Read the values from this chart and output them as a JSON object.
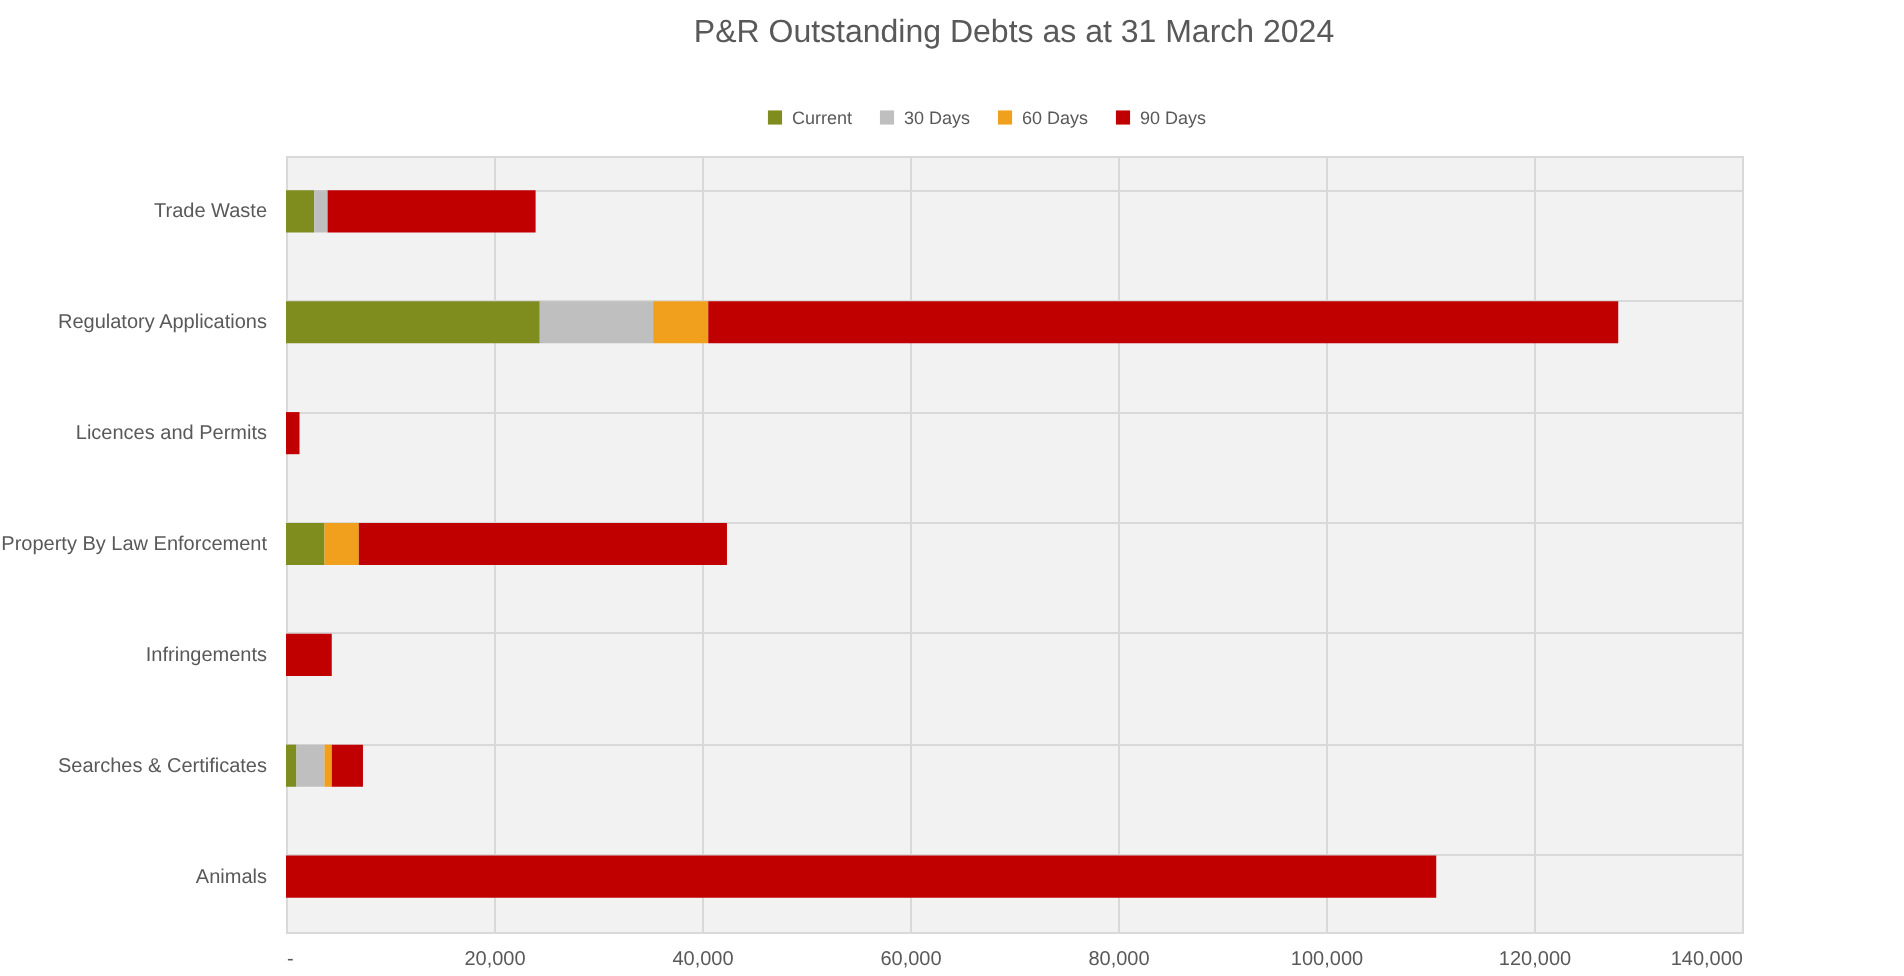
{
  "chart_data": {
    "type": "bar",
    "orientation": "horizontal",
    "stacked": true,
    "title": "P&R Outstanding Debts as at 31 March 2024",
    "categories": [
      "Trade Waste",
      "Regulatory Applications",
      "Licences and Permits",
      "Property By Law Enforcement",
      "Infringements",
      "Searches & Certificates",
      "Animals"
    ],
    "series": [
      {
        "name": "Current",
        "color": "#7f8c1e",
        "values": [
          2700,
          24400,
          null,
          3700,
          null,
          1000,
          null
        ]
      },
      {
        "name": "30 Days",
        "color": "#bfbfbf",
        "values": [
          1300,
          10900,
          null,
          null,
          null,
          2700,
          null
        ]
      },
      {
        "name": "60 Days",
        "color": "#f0a01c",
        "values": [
          null,
          5300,
          null,
          3300,
          null,
          700,
          null
        ]
      },
      {
        "name": "90 Days",
        "color": "#c00000",
        "values": [
          20000,
          87500,
          1300,
          35400,
          4400,
          3000,
          110600
        ]
      }
    ],
    "xlim": [
      0,
      140000
    ],
    "xticks": [
      {
        "value": 0,
        "label": "-"
      },
      {
        "value": 20000,
        "label": "20,000"
      },
      {
        "value": 40000,
        "label": "40,000"
      },
      {
        "value": 60000,
        "label": "60,000"
      },
      {
        "value": 80000,
        "label": "80,000"
      },
      {
        "value": 100000,
        "label": "100,000"
      },
      {
        "value": 120000,
        "label": "120,000"
      },
      {
        "value": 140000,
        "label": "140,000"
      }
    ],
    "grid": true,
    "legend": "top"
  }
}
